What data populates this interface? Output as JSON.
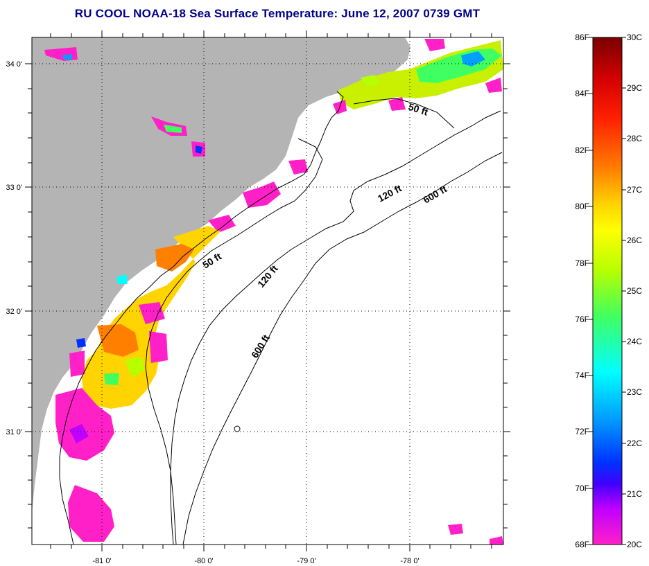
{
  "title": "RU COOL  NOAA-18  Sea Surface Temperature:  June 12, 2007 0739 GMT",
  "map": {
    "lon_labels": [
      "-81 0'",
      "-80 0'",
      "-79 0'",
      "-78 0'"
    ],
    "lat_labels": [
      "34 0'",
      "33 0'",
      "32 0'",
      "31 0'"
    ],
    "contours": [
      {
        "label": "50 ft"
      },
      {
        "label": "50 ft"
      },
      {
        "label": "120 ft"
      },
      {
        "label": "120 ft"
      },
      {
        "label": "600 ft"
      },
      {
        "label": "600 ft"
      }
    ],
    "colors": {
      "land": "#b4b4b4",
      "ocean": "#ffffff",
      "grid": "#000000"
    }
  },
  "colorbar": {
    "fahrenheit": [
      "86F",
      "84F",
      "82F",
      "80F",
      "78F",
      "76F",
      "74F",
      "72F",
      "70F",
      "68F"
    ],
    "celsius": [
      "30C",
      "29C",
      "28C",
      "27C",
      "26C",
      "25C",
      "24C",
      "23C",
      "22C",
      "21C",
      "20C"
    ],
    "gradient": [
      "#7a0000",
      "#d20000",
      "#ff2000",
      "#ff8000",
      "#ffd400",
      "#ffff00",
      "#b6ff00",
      "#40ff60",
      "#00ffff",
      "#00a0ff",
      "#0030ff",
      "#4000ff",
      "#c000ff",
      "#ff20c8"
    ]
  }
}
